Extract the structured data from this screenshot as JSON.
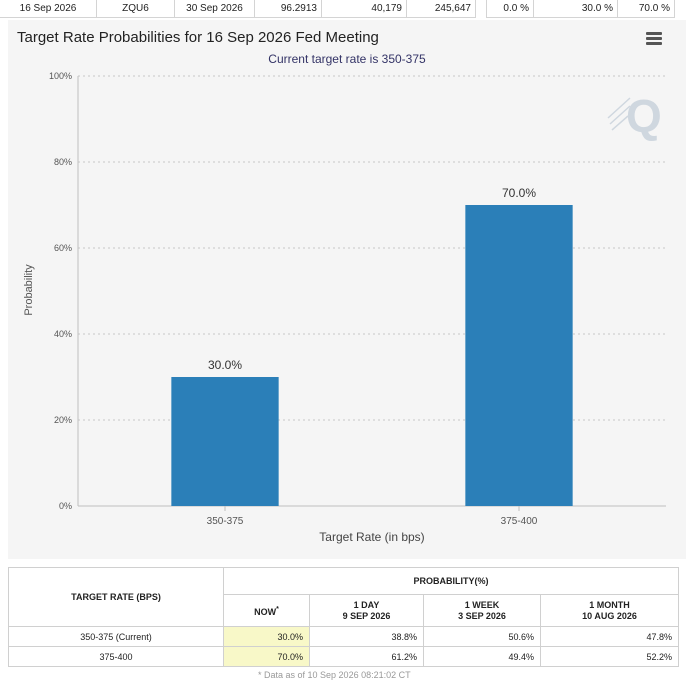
{
  "top_row": {
    "cells": [
      "16 Sep 2026",
      "ZQU6",
      "30 Sep 2026",
      "96.2913",
      "40,179",
      "245,647",
      "0.0 %",
      "30.0 %",
      "70.0 %"
    ]
  },
  "chart": {
    "title": "Target Rate Probabilities for 16 Sep 2026 Fed Meeting",
    "subtitle": "Current target rate is 350-375",
    "menu_icon": "hamburger-menu-icon",
    "watermark_icon": "q-logo-icon",
    "bar_color": "#2b7fb8"
  },
  "chart_data": {
    "type": "bar",
    "categories": [
      "350-375",
      "375-400"
    ],
    "values": [
      30.0,
      70.0
    ],
    "data_labels": [
      "30.0%",
      "70.0%"
    ],
    "title": "Target Rate Probabilities for 16 Sep 2026 Fed Meeting",
    "subtitle": "Current target rate is 350-375",
    "xlabel": "Target Rate (in bps)",
    "ylabel": "Probability",
    "ylim": [
      0,
      100
    ],
    "yticks": [
      0,
      20,
      40,
      60,
      80,
      100
    ],
    "ytick_labels": [
      "0%",
      "20%",
      "40%",
      "60%",
      "80%",
      "100%"
    ],
    "grid": true,
    "legend": "none"
  },
  "table": {
    "target_header": "TARGET RATE (BPS)",
    "probability_header": "PROBABILITY(%)",
    "columns": [
      {
        "line1": "NOW",
        "mark": "*",
        "line2": ""
      },
      {
        "line1": "1 DAY",
        "line2": "9 SEP 2026"
      },
      {
        "line1": "1 WEEK",
        "line2": "3 SEP 2026"
      },
      {
        "line1": "1 MONTH",
        "line2": "10 AUG 2026"
      }
    ],
    "rows": [
      {
        "label": "350-375 (Current)",
        "values": [
          "30.0%",
          "38.8%",
          "50.6%",
          "47.8%"
        ]
      },
      {
        "label": "375-400",
        "values": [
          "70.0%",
          "61.2%",
          "49.4%",
          "52.2%"
        ]
      }
    ],
    "footnote": "* Data as of 10 Sep 2026 08:21:02 CT"
  }
}
